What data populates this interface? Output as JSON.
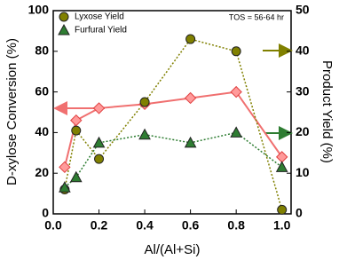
{
  "chart_data": {
    "type": "line",
    "annotation": "TOS = 56-64 hr",
    "x_label": "Al/(Al+Si)",
    "y_label": "D-xylose Conversion (%)",
    "y2_label": "Product Yield (%)",
    "x": [
      0.05,
      0.1,
      0.2,
      0.4,
      0.6,
      0.8,
      1.0
    ],
    "xlim": [
      0,
      1.04
    ],
    "xticks": [
      {
        "value": 0,
        "label": "0.0"
      },
      0.2,
      0.4,
      0.6,
      0.8,
      {
        "value": 1,
        "label": "1.0"
      }
    ],
    "ylim": [
      0,
      100
    ],
    "yticks": [
      0,
      20,
      40,
      60,
      80,
      100
    ],
    "y2lim": [
      0,
      50
    ],
    "y2ticks": [
      0,
      10,
      20,
      30,
      40,
      50
    ],
    "grid": false,
    "legend": "upper left",
    "series": [
      {
        "color": "#f07070",
        "marker": "diamond",
        "linestyle": "solid",
        "axis": "y",
        "values": [
          23,
          46,
          52,
          54,
          57,
          60,
          28
        ]
      },
      {
        "name": "Lyxose Yield",
        "color": "#808000",
        "marker": "circle",
        "linestyle": "dotted",
        "axis": "y2",
        "values": [
          6,
          20.5,
          13.5,
          27.5,
          43,
          40,
          1
        ]
      },
      {
        "name": "Furfural Yield",
        "color": "#2e7d32",
        "marker": "triangle",
        "linestyle": "dotted",
        "axis": "y2",
        "values": [
          6.5,
          9,
          17.5,
          19.5,
          17.5,
          20,
          11.5
        ]
      }
    ]
  }
}
